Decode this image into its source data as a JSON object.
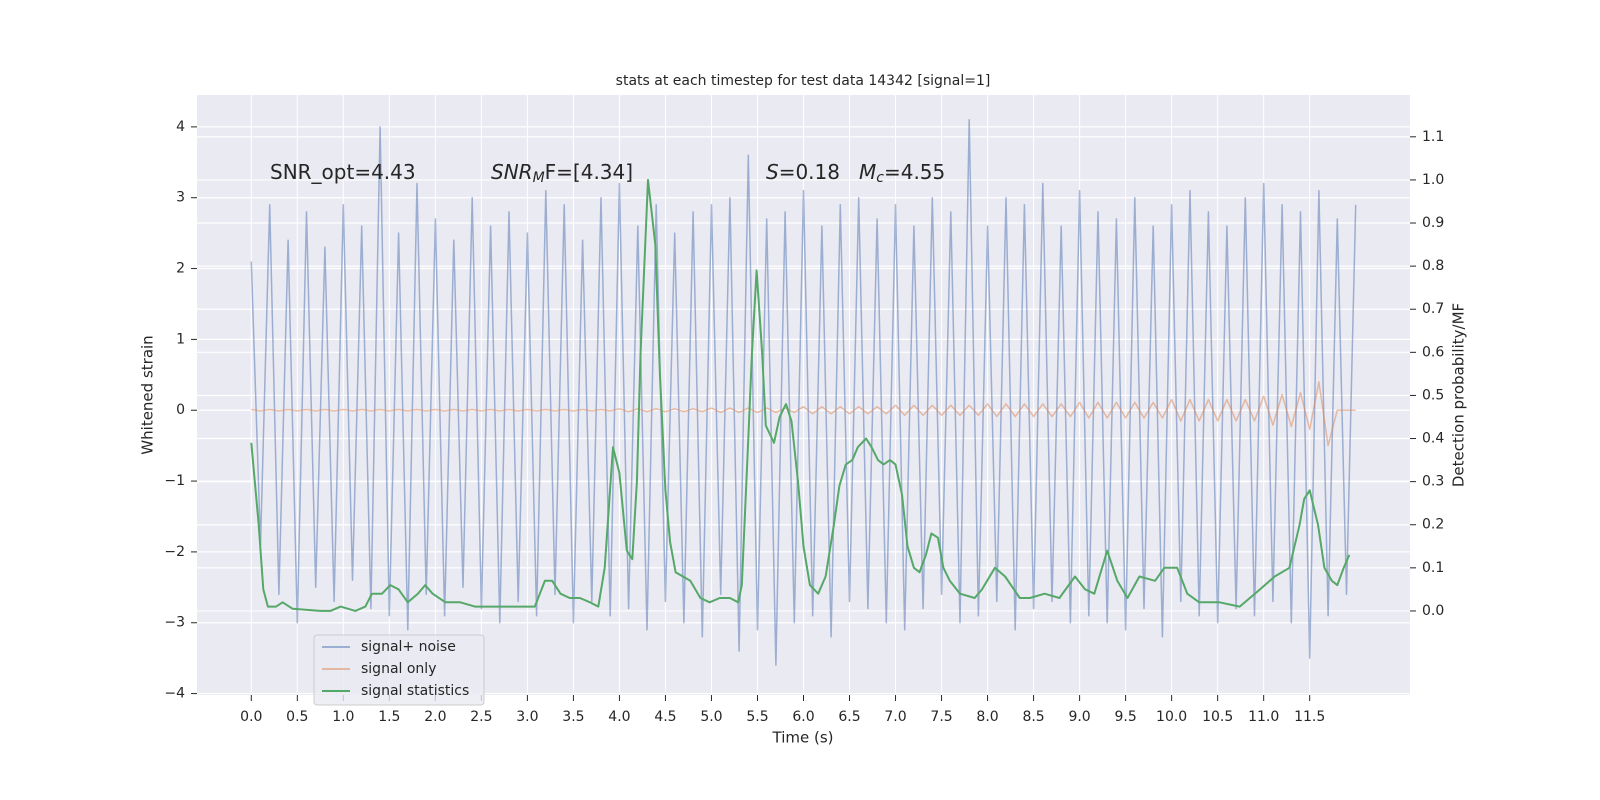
{
  "chart_data": {
    "type": "line",
    "title": "stats at each timestep for test data 14342 [signal=1]",
    "xlabel": "Time (s)",
    "ylabel": "Whitened strain",
    "y2label": "Detection probability/MF",
    "annotations": [
      {
        "text": "SNR_opt=4.43"
      },
      {
        "base": "SNR",
        "sub": "M",
        "rest": "F=[4.34]"
      },
      {
        "base": "S",
        "rest": "=0.18"
      },
      {
        "base": "M",
        "sub": "c",
        "rest": "=4.55"
      }
    ],
    "xlim": [
      -0.59,
      12.59
    ],
    "ylim": [
      -4.02,
      4.45
    ],
    "y2lim": [
      -0.195,
      1.197
    ],
    "xticks": [
      {
        "value": 0,
        "label": "0.0"
      },
      0.5,
      {
        "value": 1,
        "label": "1.0"
      },
      1.5,
      {
        "value": 2,
        "label": "2.0"
      },
      2.5,
      {
        "value": 3,
        "label": "3.0"
      },
      3.5,
      {
        "value": 4,
        "label": "4.0"
      },
      4.5,
      {
        "value": 5,
        "label": "5.0"
      },
      5.5,
      {
        "value": 6,
        "label": "6.0"
      },
      6.5,
      {
        "value": 7,
        "label": "7.0"
      },
      7.5,
      {
        "value": 8,
        "label": "8.0"
      },
      8.5,
      {
        "value": 9,
        "label": "9.0"
      },
      9.5,
      {
        "value": 10,
        "label": "10.0"
      },
      10.5,
      {
        "value": 11,
        "label": "11.0"
      },
      11.5
    ],
    "yticks": [
      {
        "value": -4,
        "label": "−4"
      },
      {
        "value": -3,
        "label": "−3"
      },
      {
        "value": -2,
        "label": "−2"
      },
      {
        "value": -1,
        "label": "−1"
      },
      0,
      1,
      2,
      3,
      4
    ],
    "y2ticks": [
      {
        "value": 0,
        "label": "0.0"
      },
      0.1,
      0.2,
      0.3,
      0.4,
      0.5,
      0.6,
      0.7,
      0.8,
      0.9,
      {
        "value": 1,
        "label": "1.0"
      },
      1.1
    ],
    "grid": true,
    "legend": "lower left",
    "series": [
      {
        "name": "signal+ noise",
        "color": "#4c72b0",
        "opacity": 0.5,
        "x": [
          0,
          0.1,
          0.2,
          0.3,
          0.4,
          0.5,
          0.6,
          0.7,
          0.8,
          0.9,
          1,
          1.1,
          1.2,
          1.3,
          1.4,
          1.5,
          1.6,
          1.7,
          1.8,
          1.9,
          2,
          2.1,
          2.2,
          2.3,
          2.4,
          2.5,
          2.6,
          2.7,
          2.8,
          2.9,
          3,
          3.1,
          3.2,
          3.3,
          3.4,
          3.5,
          3.6,
          3.7,
          3.8,
          3.9,
          4,
          4.1,
          4.2,
          4.3,
          4.4,
          4.5,
          4.6,
          4.7,
          4.8,
          4.9,
          5,
          5.1,
          5.2,
          5.3,
          5.4,
          5.5,
          5.6,
          5.7,
          5.8,
          5.9,
          6,
          6.1,
          6.2,
          6.3,
          6.4,
          6.5,
          6.6,
          6.7,
          6.8,
          6.9,
          7,
          7.1,
          7.2,
          7.3,
          7.4,
          7.5,
          7.6,
          7.7,
          7.8,
          7.9,
          8,
          8.1,
          8.2,
          8.3,
          8.4,
          8.5,
          8.6,
          8.7,
          8.8,
          8.9,
          9,
          9.1,
          9.2,
          9.3,
          9.4,
          9.5,
          9.6,
          9.7,
          9.8,
          9.9,
          10,
          10.1,
          10.2,
          10.3,
          10.4,
          10.5,
          10.6,
          10.7,
          10.8,
          10.9,
          11,
          11.1,
          11.2,
          11.3,
          11.4,
          11.5,
          11.6,
          11.7,
          11.8,
          11.9,
          12
        ],
        "values": [
          2.1,
          -1.9,
          2.9,
          -2.6,
          2.4,
          -3.0,
          2.8,
          -2.5,
          2.3,
          -2.7,
          2.9,
          -2.4,
          2.6,
          -2.8,
          4.0,
          -2.9,
          2.5,
          -3.1,
          3.2,
          -2.6,
          2.7,
          -2.9,
          2.4,
          -2.5,
          3.0,
          -2.8,
          2.6,
          -3.0,
          2.8,
          -2.7,
          2.5,
          -2.9,
          3.1,
          -2.6,
          2.9,
          -3.0,
          2.4,
          -2.7,
          3.0,
          -2.9,
          3.2,
          -2.8,
          2.6,
          -3.1,
          2.9,
          -2.7,
          2.5,
          -3.0,
          2.8,
          -3.2,
          2.9,
          -2.6,
          3.0,
          -3.4,
          3.6,
          -3.1,
          2.7,
          -3.6,
          2.8,
          -3.0,
          3.1,
          -2.9,
          2.6,
          -3.2,
          2.9,
          -2.7,
          3.0,
          -2.8,
          2.7,
          -3.0,
          2.9,
          -3.1,
          2.6,
          -2.8,
          3.0,
          -2.6,
          2.8,
          -3.0,
          4.1,
          -2.9,
          2.6,
          -2.7,
          3.0,
          -3.1,
          2.9,
          -2.8,
          3.2,
          -2.7,
          2.6,
          -3.0,
          3.1,
          -2.9,
          2.8,
          -3.0,
          2.7,
          -3.1,
          3.0,
          -2.8,
          2.6,
          -3.2,
          2.9,
          -2.7,
          3.1,
          -2.9,
          2.8,
          -3.0,
          2.6,
          -2.8,
          3.0,
          -2.9,
          3.2,
          -2.7,
          2.9,
          -3.0,
          2.8,
          -3.5,
          3.1,
          -2.9,
          2.7,
          -2.6,
          2.9
        ]
      },
      {
        "name": "signal only",
        "color": "#dd8452",
        "opacity": 0.5,
        "x": [
          0,
          0.1,
          0.2,
          0.3,
          0.4,
          0.5,
          0.6,
          0.7,
          0.8,
          0.9,
          1,
          1.1,
          1.2,
          1.3,
          1.4,
          1.5,
          1.6,
          1.7,
          1.8,
          1.9,
          2,
          2.1,
          2.2,
          2.3,
          2.4,
          2.5,
          2.6,
          2.7,
          2.8,
          2.9,
          3,
          3.1,
          3.2,
          3.3,
          3.4,
          3.5,
          3.6,
          3.7,
          3.8,
          3.9,
          4,
          4.1,
          4.2,
          4.3,
          4.4,
          4.5,
          4.6,
          4.7,
          4.8,
          4.9,
          5,
          5.1,
          5.2,
          5.3,
          5.4,
          5.5,
          5.6,
          5.7,
          5.8,
          5.9,
          6,
          6.1,
          6.2,
          6.3,
          6.4,
          6.5,
          6.6,
          6.7,
          6.8,
          6.9,
          7,
          7.1,
          7.2,
          7.3,
          7.4,
          7.5,
          7.6,
          7.7,
          7.8,
          7.9,
          8,
          8.1,
          8.2,
          8.3,
          8.4,
          8.5,
          8.6,
          8.7,
          8.8,
          8.9,
          9,
          9.1,
          9.2,
          9.3,
          9.4,
          9.5,
          9.6,
          9.7,
          9.8,
          9.9,
          10,
          10.1,
          10.2,
          10.3,
          10.4,
          10.5,
          10.6,
          10.7,
          10.8,
          10.9,
          11,
          11.1,
          11.2,
          11.3,
          11.4,
          11.5,
          11.6,
          11.7,
          11.8,
          11.9,
          12
        ],
        "values": [
          0.01,
          -0.01,
          0.01,
          -0.01,
          0.01,
          -0.01,
          0.01,
          -0.01,
          0.01,
          -0.01,
          0.01,
          -0.01,
          0.01,
          -0.01,
          0.01,
          -0.01,
          0.01,
          -0.01,
          0.01,
          -0.01,
          0.01,
          -0.01,
          0.01,
          -0.01,
          0.01,
          -0.01,
          0.01,
          -0.01,
          0.01,
          -0.01,
          0.01,
          -0.01,
          0.01,
          -0.01,
          0.01,
          -0.01,
          0.01,
          -0.01,
          0.01,
          -0.01,
          0.02,
          -0.02,
          0.02,
          -0.02,
          0.02,
          -0.02,
          0.02,
          -0.02,
          0.02,
          -0.02,
          0.03,
          -0.03,
          0.03,
          -0.03,
          0.03,
          -0.03,
          0.03,
          -0.03,
          0.03,
          -0.03,
          0.05,
          -0.05,
          0.05,
          -0.05,
          0.05,
          -0.05,
          0.05,
          -0.05,
          0.05,
          -0.05,
          0.07,
          -0.07,
          0.07,
          -0.07,
          0.07,
          -0.07,
          0.07,
          -0.07,
          0.07,
          -0.07,
          0.09,
          -0.09,
          0.09,
          -0.09,
          0.09,
          -0.09,
          0.09,
          -0.09,
          0.09,
          -0.09,
          0.11,
          -0.11,
          0.11,
          -0.11,
          0.11,
          -0.11,
          0.11,
          -0.11,
          0.11,
          -0.11,
          0.15,
          -0.15,
          0.15,
          -0.15,
          0.15,
          -0.15,
          0.15,
          -0.15,
          0.15,
          -0.15,
          0.2,
          -0.21,
          0.22,
          -0.23,
          0.25,
          -0.27,
          0.4,
          -0.5,
          0,
          0,
          0
        ]
      },
      {
        "name": "signal statistics",
        "color": "#55a868",
        "opacity": 1,
        "axis": "y2",
        "x": [
          0,
          0.08,
          0.13,
          0.18,
          0.27,
          0.34,
          0.45,
          0.75,
          0.86,
          0.97,
          1.13,
          1.24,
          1.31,
          1.42,
          1.51,
          1.6,
          1.7,
          1.81,
          1.89,
          1.97,
          2.11,
          2.27,
          2.43,
          2.7,
          2.92,
          3.08,
          3.19,
          3.27,
          3.36,
          3.46,
          3.57,
          3.68,
          3.77,
          3.84,
          3.93,
          4.0,
          4.08,
          4.14,
          4.19,
          4.23,
          4.31,
          4.39,
          4.44,
          4.5,
          4.55,
          4.61,
          4.77,
          4.88,
          4.98,
          5.09,
          5.2,
          5.29,
          5.33,
          5.4,
          5.44,
          5.49,
          5.55,
          5.59,
          5.68,
          5.74,
          5.81,
          5.87,
          5.94,
          6.0,
          6.07,
          6.16,
          6.24,
          6.33,
          6.39,
          6.46,
          6.53,
          6.59,
          6.68,
          6.74,
          6.81,
          6.87,
          6.94,
          7.0,
          7.07,
          7.13,
          7.2,
          7.26,
          7.33,
          7.39,
          7.46,
          7.52,
          7.59,
          7.7,
          7.86,
          7.94,
          8.08,
          8.19,
          8.35,
          8.46,
          8.62,
          8.78,
          8.95,
          9.06,
          9.16,
          9.3,
          9.41,
          9.52,
          9.65,
          9.82,
          9.92,
          10.06,
          10.17,
          10.3,
          10.52,
          10.74,
          10.96,
          11.12,
          11.28,
          11.39,
          11.44,
          11.5,
          11.59,
          11.66,
          11.74,
          11.8,
          11.87,
          11.93
        ],
        "values": [
          0.39,
          0.2,
          0.05,
          0.01,
          0.01,
          0.02,
          0.005,
          0,
          0,
          0.01,
          0,
          0.01,
          0.04,
          0.04,
          0.06,
          0.05,
          0.02,
          0.04,
          0.06,
          0.04,
          0.02,
          0.02,
          0.01,
          0.01,
          0.01,
          0.01,
          0.07,
          0.07,
          0.04,
          0.03,
          0.03,
          0.02,
          0.01,
          0.1,
          0.38,
          0.32,
          0.14,
          0.12,
          0.3,
          0.6,
          1.0,
          0.85,
          0.55,
          0.28,
          0.16,
          0.09,
          0.07,
          0.03,
          0.02,
          0.03,
          0.03,
          0.02,
          0.06,
          0.4,
          0.6,
          0.79,
          0.6,
          0.43,
          0.39,
          0.45,
          0.48,
          0.44,
          0.3,
          0.15,
          0.06,
          0.04,
          0.08,
          0.2,
          0.29,
          0.34,
          0.35,
          0.38,
          0.4,
          0.38,
          0.35,
          0.34,
          0.35,
          0.34,
          0.27,
          0.15,
          0.1,
          0.09,
          0.13,
          0.18,
          0.17,
          0.1,
          0.07,
          0.04,
          0.03,
          0.05,
          0.1,
          0.08,
          0.03,
          0.03,
          0.04,
          0.03,
          0.08,
          0.05,
          0.04,
          0.14,
          0.07,
          0.03,
          0.08,
          0.07,
          0.1,
          0.1,
          0.04,
          0.02,
          0.02,
          0.01,
          0.05,
          0.08,
          0.1,
          0.2,
          0.26,
          0.28,
          0.2,
          0.1,
          0.07,
          0.06,
          0.1,
          0.13
        ]
      }
    ]
  }
}
